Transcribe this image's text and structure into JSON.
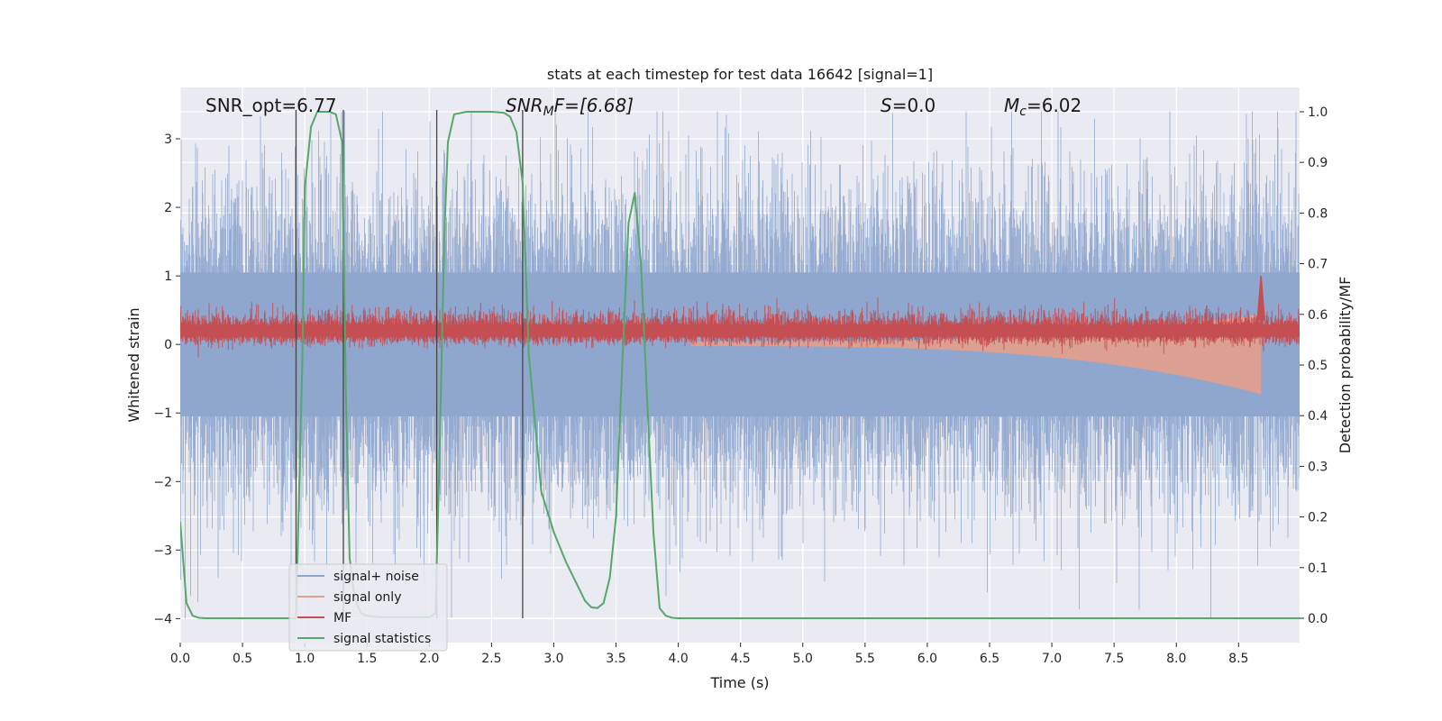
{
  "chart_data": {
    "type": "line",
    "title": "stats at each timestep for test data 16642 [signal=1]",
    "xlabel": "Time (s)",
    "ylabel": "Whitened strain",
    "y2label": "Detection probability/MF",
    "xlim": [
      0.0,
      8.99
    ],
    "ylim": [
      -4.35,
      3.75
    ],
    "y2lim": [
      -0.048,
      1.048
    ],
    "grid": true,
    "xticks": [
      "0.0",
      "0.5",
      "1.0",
      "1.5",
      "2.0",
      "2.5",
      "3.0",
      "3.5",
      "4.0",
      "4.5",
      "5.0",
      "5.5",
      "6.0",
      "6.5",
      "7.0",
      "7.5",
      "8.0",
      "8.5"
    ],
    "xtick_values": [
      0.0,
      0.5,
      1.0,
      1.5,
      2.0,
      2.5,
      3.0,
      3.5,
      4.0,
      4.5,
      5.0,
      5.5,
      6.0,
      6.5,
      7.0,
      7.5,
      8.0,
      8.5
    ],
    "yticks": [
      "−4",
      "−3",
      "−2",
      "−1",
      "0",
      "1",
      "2",
      "3"
    ],
    "ytick_values": [
      -4,
      -3,
      -2,
      -1,
      0,
      1,
      2,
      3
    ],
    "y2ticks": [
      "0.0",
      "0.1",
      "0.2",
      "0.3",
      "0.4",
      "0.5",
      "0.6",
      "0.7",
      "0.8",
      "0.9",
      "1.0"
    ],
    "y2tick_values": [
      0.0,
      0.1,
      0.2,
      0.3,
      0.4,
      0.5,
      0.6,
      0.7,
      0.8,
      0.9,
      1.0
    ],
    "annotations": {
      "snr_opt": "SNR_opt=6.77",
      "snr_mf_main": "SNR",
      "snr_mf_sub": "M",
      "snr_mf_rest": "F=[6.68]",
      "s_main": "S",
      "s_rest": "=0.0",
      "mc_main": "M",
      "mc_sub": "c",
      "mc_rest": "=6.02"
    },
    "vertical_markers_s": [
      0.93,
      1.31,
      2.06,
      2.75
    ],
    "series": [
      {
        "name": "signal+ noise",
        "color": "#8fa6cf",
        "axis": "left",
        "kind": "noise",
        "approx_std": 1.0,
        "range": [
          -4.0,
          3.4
        ]
      },
      {
        "name": "signal only",
        "color": "#e3a08a",
        "axis": "left",
        "kind": "chirp",
        "t_start": 4.1,
        "t_merge": 8.68,
        "peak_amplitude": 0.95
      },
      {
        "name": "MF",
        "color": "#c44e52",
        "axis": "left",
        "kind": "mf",
        "baseline": 0.2,
        "spread": 0.12,
        "peak_time": 8.68,
        "peak_value": 1.0
      },
      {
        "name": "signal statistics",
        "color": "#55a868",
        "axis": "right",
        "kind": "line",
        "x": [
          0.0,
          0.05,
          0.1,
          0.15,
          0.2,
          0.5,
          0.93,
          0.95,
          0.98,
          1.0,
          1.05,
          1.1,
          1.2,
          1.25,
          1.3,
          1.33,
          1.36,
          1.4,
          1.45,
          1.5,
          1.6,
          1.8,
          2.0,
          2.05,
          2.08,
          2.12,
          2.15,
          2.2,
          2.3,
          2.5,
          2.6,
          2.65,
          2.7,
          2.75,
          2.8,
          2.9,
          3.0,
          3.1,
          3.2,
          3.25,
          3.3,
          3.35,
          3.4,
          3.45,
          3.5,
          3.55,
          3.6,
          3.65,
          3.7,
          3.75,
          3.8,
          3.85,
          3.9,
          3.95,
          4.0,
          5.0,
          6.0,
          7.0,
          8.0,
          8.99
        ],
        "y": [
          0.19,
          0.03,
          0.005,
          0.001,
          0.0,
          0.0,
          0.0,
          0.2,
          0.5,
          0.85,
          0.97,
          1.0,
          1.0,
          0.995,
          0.94,
          0.45,
          0.12,
          0.04,
          0.01,
          0.005,
          0.002,
          0.002,
          0.002,
          0.01,
          0.3,
          0.75,
          0.94,
          0.995,
          1.0,
          1.0,
          0.998,
          0.99,
          0.96,
          0.86,
          0.52,
          0.25,
          0.17,
          0.11,
          0.06,
          0.035,
          0.022,
          0.02,
          0.03,
          0.08,
          0.2,
          0.5,
          0.78,
          0.84,
          0.7,
          0.43,
          0.17,
          0.02,
          0.005,
          0.001,
          0.0,
          0.0,
          0.0,
          0.0,
          0.0,
          0.0
        ]
      }
    ],
    "legend": {
      "position": "lower-left",
      "entries": [
        "signal+ noise",
        "signal only",
        "MF",
        "signal statistics"
      ]
    },
    "colors": {
      "plot_background": "#eaeaf2",
      "grid": "#ffffff",
      "marker_line": "#444444",
      "tick_text": "#262626"
    }
  }
}
